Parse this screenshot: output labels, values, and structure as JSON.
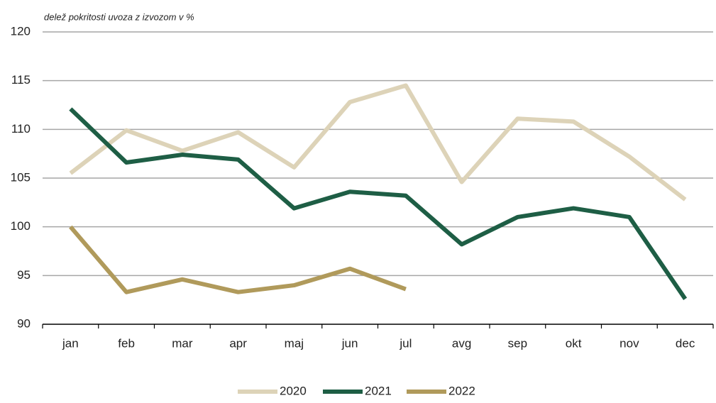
{
  "chart_data": {
    "type": "line",
    "y_label": "delež pokritosti uvoza z izvozom v %",
    "categories": [
      "jan",
      "feb",
      "mar",
      "apr",
      "maj",
      "jun",
      "jul",
      "avg",
      "sep",
      "okt",
      "nov",
      "dec"
    ],
    "series": [
      {
        "name": "2020",
        "color": "#ddd3b8",
        "values": [
          105.5,
          109.9,
          107.8,
          109.7,
          106.1,
          112.8,
          114.5,
          104.6,
          111.1,
          110.8,
          107.2,
          102.8
        ]
      },
      {
        "name": "2021",
        "color": "#1e5e45",
        "values": [
          112.1,
          106.6,
          107.4,
          106.9,
          101.9,
          103.6,
          103.2,
          98.2,
          101.0,
          101.9,
          101.0,
          92.6
        ]
      },
      {
        "name": "2022",
        "color": "#b09a5b",
        "values": [
          100.0,
          93.3,
          94.6,
          93.3,
          94.0,
          95.7,
          93.6,
          null,
          null,
          null,
          null,
          null
        ]
      }
    ],
    "ylim": [
      90,
      120
    ],
    "yticks": [
      90,
      95,
      100,
      105,
      110,
      115,
      120
    ],
    "grid": true,
    "legend": "bottom"
  }
}
